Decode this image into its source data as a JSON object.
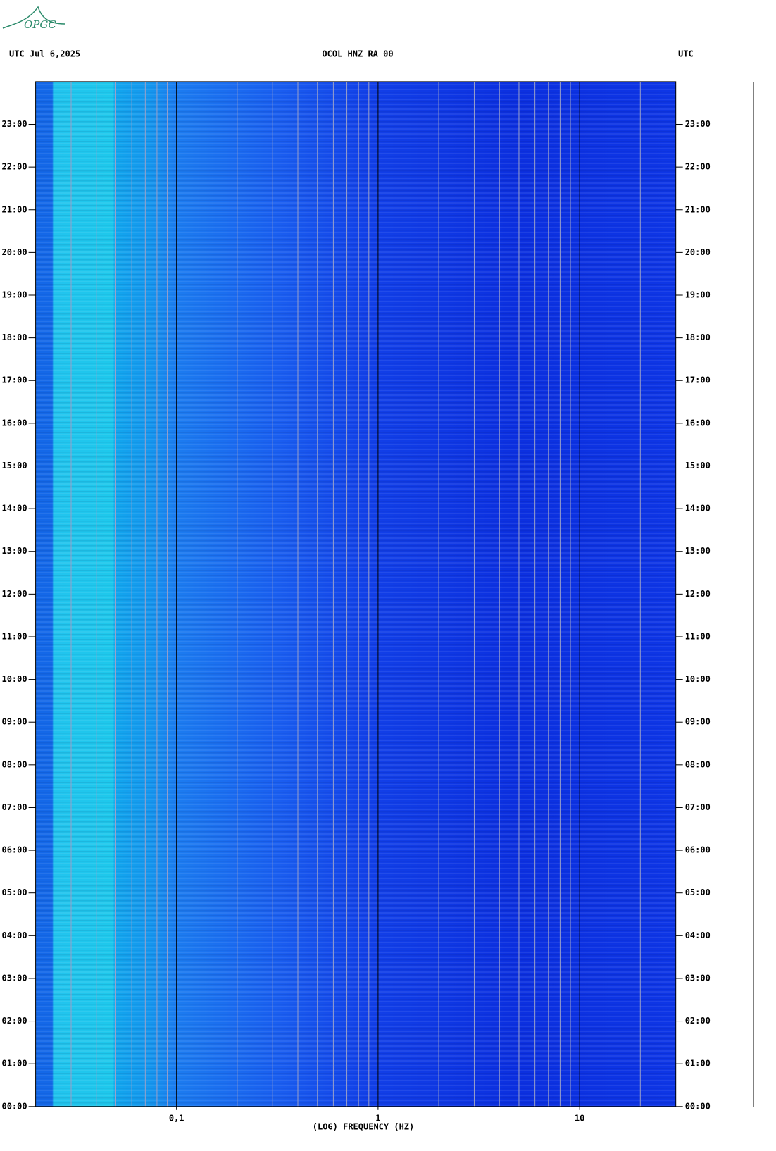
{
  "chart_data": {
    "type": "spectrogram",
    "logo": "OPGC",
    "title": "OCOL HNZ RA 00",
    "left_header": "UTC  Jul 6,2025",
    "right_header": "UTC",
    "x_label": "(LOG) FREQUENCY (HZ)",
    "x_log": true,
    "xlim": [
      0.02,
      30
    ],
    "xticks": [
      {
        "value": 0.1,
        "label": "0,1"
      },
      1,
      10
    ],
    "xminor_ticks": [
      0.03,
      0.04,
      0.05,
      0.06,
      0.07,
      0.08,
      0.09,
      0.2,
      0.3,
      0.4,
      0.5,
      0.6,
      0.7,
      0.8,
      0.9,
      2,
      3,
      4,
      5,
      6,
      7,
      8,
      9,
      20
    ],
    "ylim": [
      0,
      24
    ],
    "yticks": [
      {
        "value": 0,
        "label": "00:00"
      },
      {
        "value": 1,
        "label": "01:00"
      },
      {
        "value": 2,
        "label": "02:00"
      },
      {
        "value": 3,
        "label": "03:00"
      },
      {
        "value": 4,
        "label": "04:00"
      },
      {
        "value": 5,
        "label": "05:00"
      },
      {
        "value": 6,
        "label": "06:00"
      },
      {
        "value": 7,
        "label": "07:00"
      },
      {
        "value": 8,
        "label": "08:00"
      },
      {
        "value": 9,
        "label": "09:00"
      },
      {
        "value": 10,
        "label": "10:00"
      },
      {
        "value": 11,
        "label": "11:00"
      },
      {
        "value": 12,
        "label": "12:00"
      },
      {
        "value": 13,
        "label": "13:00"
      },
      {
        "value": 14,
        "label": "14:00"
      },
      {
        "value": 15,
        "label": "15:00"
      },
      {
        "value": 16,
        "label": "16:00"
      },
      {
        "value": 17,
        "label": "17:00"
      },
      {
        "value": 18,
        "label": "18:00"
      },
      {
        "value": 19,
        "label": "19:00"
      },
      {
        "value": 20,
        "label": "20:00"
      },
      {
        "value": 21,
        "label": "21:00"
      },
      {
        "value": 22,
        "label": "22:00"
      },
      {
        "value": 23,
        "label": "23:00"
      }
    ],
    "grid": true
  }
}
